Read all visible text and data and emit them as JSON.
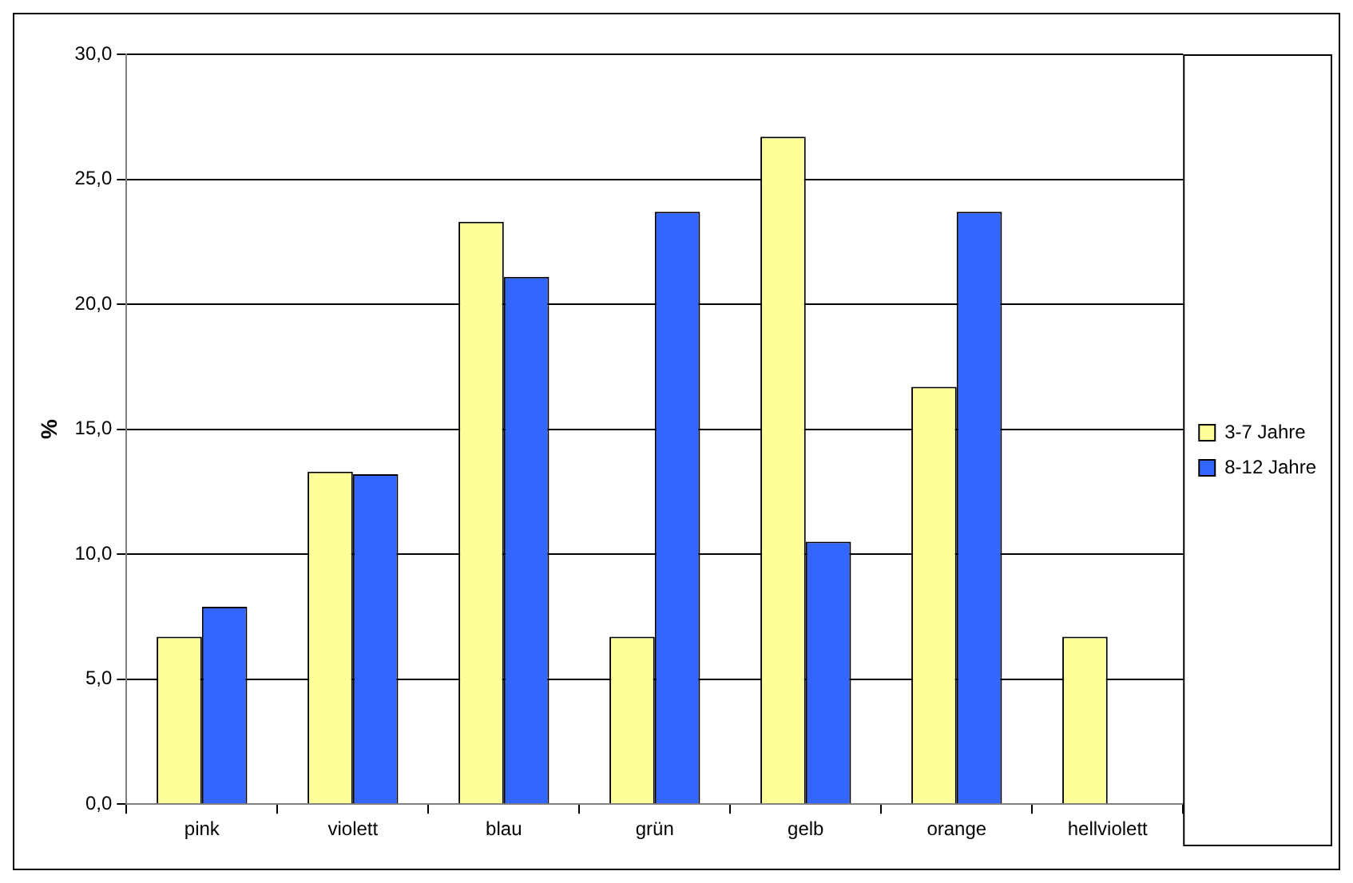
{
  "chart_data": {
    "type": "bar",
    "ylabel": "%",
    "categories": [
      "pink",
      "violett",
      "blau",
      "grün",
      "gelb",
      "orange",
      "hellviolett"
    ],
    "series": [
      {
        "name": "3-7 Jahre",
        "color": "#ffff99",
        "values": [
          6.7,
          13.3,
          23.3,
          6.7,
          26.7,
          16.7,
          6.7
        ]
      },
      {
        "name": "8-12 Jahre",
        "color": "#3366ff",
        "values": [
          7.9,
          13.2,
          21.1,
          23.7,
          10.5,
          23.7,
          0
        ]
      }
    ],
    "ylim": [
      0,
      30
    ],
    "yticks": [
      {
        "value": 0,
        "label": "0,0"
      },
      {
        "value": 5,
        "label": "5,0"
      },
      {
        "value": 10,
        "label": "10,0"
      },
      {
        "value": 15,
        "label": "15,0"
      },
      {
        "value": 20,
        "label": "20,0"
      },
      {
        "value": 25,
        "label": "25,0"
      },
      {
        "value": 30,
        "label": "30,0"
      }
    ],
    "grid": "y",
    "legend": "right"
  }
}
